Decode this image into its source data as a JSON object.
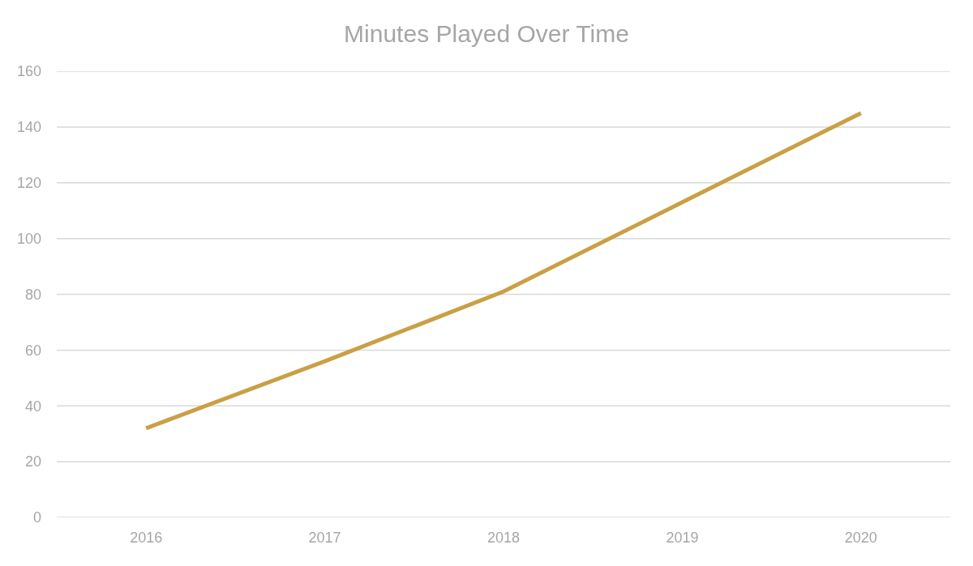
{
  "chart_data": {
    "type": "line",
    "title": "Minutes Played Over Time",
    "categories": [
      "2016",
      "2017",
      "2018",
      "2019",
      "2020"
    ],
    "series": [
      {
        "color": "#c9a045",
        "values": [
          32,
          56,
          81,
          113,
          145
        ]
      }
    ],
    "ylim": [
      0,
      160
    ],
    "yticks": [
      0,
      20,
      40,
      60,
      80,
      100,
      120,
      140,
      160
    ],
    "grid": "y",
    "marker": "none",
    "line_style": "solid"
  }
}
